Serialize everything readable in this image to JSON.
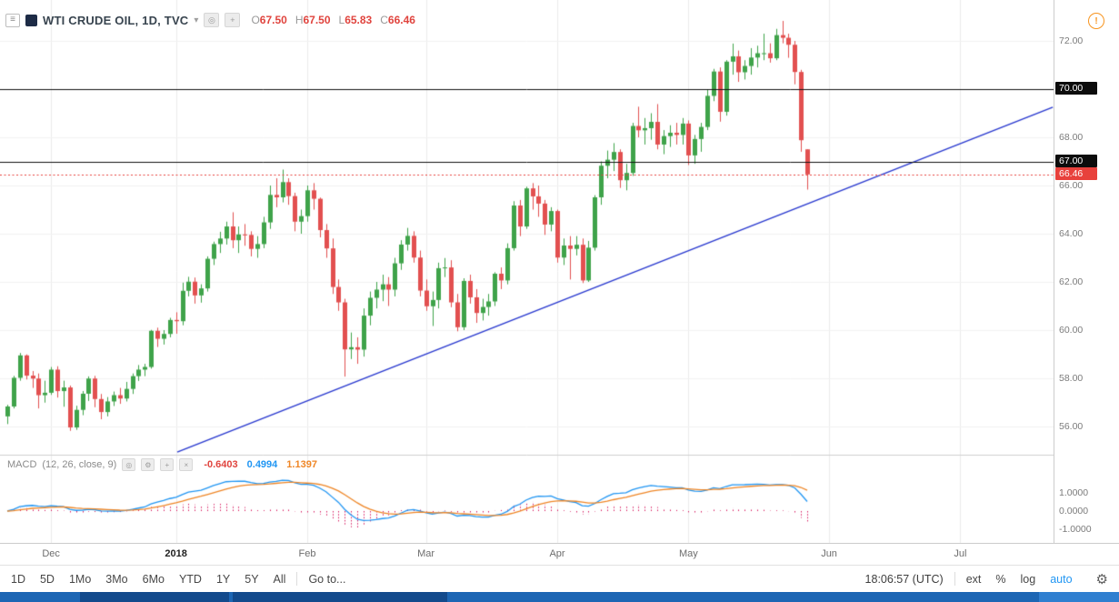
{
  "header": {
    "title": "WTI CRUDE OIL, 1D, TVC",
    "ohlc": {
      "o_label": "O",
      "o": "67.50",
      "h_label": "H",
      "h": "67.50",
      "l_label": "L",
      "l": "65.83",
      "c_label": "C",
      "c": "66.46"
    }
  },
  "macd_legend": {
    "title": "MACD",
    "params": "(12, 26, close, 9)",
    "hist": "-0.6403",
    "macd": "0.4994",
    "signal": "1.1397"
  },
  "toolbar": {
    "ranges": [
      "1D",
      "5D",
      "1Mo",
      "3Mo",
      "6Mo",
      "YTD",
      "1Y",
      "5Y",
      "All"
    ],
    "goto": "Go to...",
    "clock": "18:06:57 (UTC)",
    "ext": "ext",
    "percent": "%",
    "log": "log",
    "auto": "auto"
  },
  "colors": {
    "up": "#3fa34a",
    "down": "#e25050",
    "trendline": "#2838cf",
    "level": "#111111",
    "last_price": "#e8413c",
    "macd_line": "#2196f3",
    "signal_line": "#ef8626",
    "histogram": "#d81b60",
    "accent": "#2196f3",
    "alert": "#f7941e",
    "taskbar": "#1d66b4"
  },
  "chart_data": {
    "type": "candlestick",
    "title": "WTI CRUDE OIL, 1D, TVC",
    "symbol": "WTI CRUDE OIL",
    "interval": "1D",
    "exchange": "TVC",
    "price_ticks": [
      72,
      68,
      66,
      64,
      62,
      60,
      58,
      56
    ],
    "levels": [
      70.0,
      67.0
    ],
    "last_price": 66.46,
    "trendline": {
      "i1": 27.2,
      "p1": 54.94,
      "i2": 167.3,
      "p2": 69.25
    },
    "months": [
      {
        "label": "Dec",
        "i": 7
      },
      {
        "label": "2018",
        "i": 27,
        "bold": true
      },
      {
        "label": "Feb",
        "i": 48
      },
      {
        "label": "Mar",
        "i": 67
      },
      {
        "label": "Apr",
        "i": 88
      },
      {
        "label": "May",
        "i": 109
      },
      {
        "label": "Jun",
        "i": 131.5
      },
      {
        "label": "Jul",
        "i": 152.5
      }
    ],
    "indicator": {
      "name": "MACD",
      "params": "(12, 26, close, 9)",
      "fast": 12,
      "slow": 26,
      "source": "close",
      "signal_len": 9,
      "values": {
        "histogram": -0.6403,
        "macd": 0.4994,
        "signal": 1.1397
      },
      "ticks": [
        1,
        0,
        -1
      ]
    },
    "candles": [
      [
        56.42,
        56.9,
        56.1,
        56.83
      ],
      [
        56.83,
        58.1,
        56.75,
        58.02
      ],
      [
        58.02,
        59.05,
        57.9,
        58.95
      ],
      [
        58.95,
        58.99,
        57.95,
        58.11
      ],
      [
        58.11,
        58.3,
        57.6,
        57.99
      ],
      [
        57.99,
        58.2,
        56.75,
        57.3
      ],
      [
        57.3,
        57.9,
        56.99,
        57.4
      ],
      [
        57.4,
        58.47,
        57.31,
        58.36
      ],
      [
        58.36,
        58.5,
        57.2,
        57.47
      ],
      [
        57.47,
        57.9,
        56.82,
        57.62
      ],
      [
        57.62,
        57.7,
        55.82,
        55.96
      ],
      [
        55.96,
        56.86,
        55.86,
        56.69
      ],
      [
        56.69,
        57.47,
        56.47,
        57.36
      ],
      [
        57.36,
        58.08,
        57.06,
        57.99
      ],
      [
        57.99,
        58.1,
        56.8,
        57.14
      ],
      [
        57.14,
        57.35,
        56.3,
        56.6
      ],
      [
        56.6,
        57.22,
        56.42,
        57.04
      ],
      [
        57.04,
        57.45,
        56.85,
        57.3
      ],
      [
        57.3,
        57.6,
        56.94,
        57.16
      ],
      [
        57.16,
        57.85,
        57.04,
        57.56
      ],
      [
        57.56,
        58.2,
        57.35,
        58.09
      ],
      [
        58.09,
        58.55,
        57.89,
        58.36
      ],
      [
        58.36,
        58.6,
        58.09,
        58.47
      ],
      [
        58.47,
        60.01,
        58.4,
        59.97
      ],
      [
        59.97,
        60.1,
        59.3,
        59.64
      ],
      [
        59.64,
        60.0,
        59.4,
        59.84
      ],
      [
        59.84,
        60.51,
        59.7,
        60.42
      ],
      [
        60.42,
        60.74,
        59.85,
        60.37
      ],
      [
        60.37,
        61.97,
        60.2,
        61.63
      ],
      [
        61.63,
        62.21,
        61.4,
        62.01
      ],
      [
        62.01,
        62.18,
        61.1,
        61.44
      ],
      [
        61.44,
        61.9,
        61.14,
        61.73
      ],
      [
        61.73,
        63.06,
        61.6,
        62.96
      ],
      [
        62.96,
        63.67,
        62.7,
        63.57
      ],
      [
        63.57,
        64.08,
        63.2,
        63.8
      ],
      [
        63.8,
        64.5,
        63.55,
        64.3
      ],
      [
        64.3,
        64.89,
        63.4,
        63.73
      ],
      [
        63.73,
        64.3,
        63.2,
        63.97
      ],
      [
        63.97,
        64.4,
        63.5,
        63.95
      ],
      [
        63.95,
        64.1,
        63.06,
        63.37
      ],
      [
        63.37,
        63.9,
        63.0,
        63.57
      ],
      [
        63.57,
        64.7,
        63.4,
        64.47
      ],
      [
        64.47,
        66.0,
        64.2,
        65.61
      ],
      [
        65.61,
        66.3,
        65.1,
        65.51
      ],
      [
        65.51,
        66.66,
        65.3,
        66.14
      ],
      [
        66.14,
        66.3,
        65.2,
        65.56
      ],
      [
        65.56,
        65.7,
        64.1,
        64.5
      ],
      [
        64.5,
        65.0,
        64.0,
        64.73
      ],
      [
        64.73,
        66.0,
        64.5,
        65.8
      ],
      [
        65.8,
        66.1,
        65.0,
        65.45
      ],
      [
        65.45,
        65.5,
        63.85,
        64.15
      ],
      [
        64.15,
        64.4,
        63.0,
        63.39
      ],
      [
        63.39,
        63.8,
        61.5,
        61.79
      ],
      [
        61.79,
        62.1,
        60.8,
        61.15
      ],
      [
        61.15,
        61.3,
        58.07,
        59.2
      ],
      [
        59.2,
        59.9,
        58.8,
        59.29
      ],
      [
        59.29,
        59.7,
        58.6,
        59.19
      ],
      [
        59.19,
        60.9,
        58.9,
        60.6
      ],
      [
        60.6,
        61.6,
        60.2,
        61.34
      ],
      [
        61.34,
        62.0,
        60.9,
        61.68
      ],
      [
        61.68,
        62.3,
        61.2,
        61.9
      ],
      [
        61.9,
        62.2,
        61.0,
        61.68
      ],
      [
        61.68,
        63.0,
        61.4,
        62.77
      ],
      [
        62.77,
        63.73,
        62.5,
        63.55
      ],
      [
        63.55,
        64.24,
        63.3,
        63.91
      ],
      [
        63.91,
        64.1,
        62.8,
        63.01
      ],
      [
        63.01,
        63.3,
        61.4,
        61.64
      ],
      [
        61.64,
        62.1,
        60.8,
        60.99
      ],
      [
        60.99,
        61.6,
        60.17,
        61.25
      ],
      [
        61.25,
        62.8,
        60.9,
        62.57
      ],
      [
        62.57,
        62.99,
        62.2,
        62.6
      ],
      [
        62.6,
        62.9,
        60.95,
        61.15
      ],
      [
        61.15,
        61.5,
        59.95,
        60.12
      ],
      [
        60.12,
        62.15,
        60.0,
        62.04
      ],
      [
        62.04,
        62.3,
        61.1,
        61.36
      ],
      [
        61.36,
        61.7,
        60.3,
        60.71
      ],
      [
        60.71,
        61.3,
        60.4,
        60.96
      ],
      [
        60.96,
        61.5,
        60.6,
        61.19
      ],
      [
        61.19,
        62.4,
        61.0,
        62.34
      ],
      [
        62.34,
        62.6,
        61.7,
        62.06
      ],
      [
        62.06,
        63.6,
        61.9,
        63.4
      ],
      [
        63.4,
        65.35,
        63.3,
        65.17
      ],
      [
        65.17,
        65.4,
        63.9,
        64.3
      ],
      [
        64.3,
        65.95,
        64.2,
        65.88
      ],
      [
        65.88,
        66.1,
        65.0,
        65.55
      ],
      [
        65.55,
        66.0,
        64.7,
        65.25
      ],
      [
        65.25,
        65.4,
        63.95,
        64.38
      ],
      [
        64.38,
        65.1,
        64.1,
        64.94
      ],
      [
        64.94,
        65.0,
        62.8,
        63.01
      ],
      [
        63.01,
        63.8,
        62.7,
        63.51
      ],
      [
        63.51,
        63.9,
        62.1,
        63.37
      ],
      [
        63.37,
        63.9,
        63.1,
        63.54
      ],
      [
        63.54,
        63.8,
        61.95,
        62.06
      ],
      [
        62.06,
        63.7,
        62.0,
        63.42
      ],
      [
        63.42,
        65.6,
        63.3,
        65.51
      ],
      [
        65.51,
        67.0,
        65.2,
        66.82
      ],
      [
        66.82,
        67.45,
        66.3,
        67.07
      ],
      [
        67.07,
        67.76,
        66.6,
        67.39
      ],
      [
        67.39,
        67.5,
        65.9,
        66.22
      ],
      [
        66.22,
        66.9,
        65.8,
        66.52
      ],
      [
        66.52,
        68.6,
        66.4,
        68.47
      ],
      [
        68.47,
        69.27,
        68.0,
        68.29
      ],
      [
        68.29,
        68.8,
        67.7,
        68.38
      ],
      [
        68.38,
        69.0,
        67.9,
        68.64
      ],
      [
        68.64,
        69.38,
        67.5,
        67.7
      ],
      [
        67.7,
        68.3,
        67.3,
        68.05
      ],
      [
        68.05,
        68.5,
        67.6,
        68.19
      ],
      [
        68.19,
        68.6,
        67.7,
        68.1
      ],
      [
        68.1,
        68.8,
        67.7,
        68.57
      ],
      [
        68.57,
        68.7,
        66.85,
        67.25
      ],
      [
        67.25,
        68.1,
        66.9,
        67.93
      ],
      [
        67.93,
        68.6,
        67.4,
        68.43
      ],
      [
        68.43,
        69.97,
        68.3,
        69.72
      ],
      [
        69.72,
        70.84,
        69.5,
        70.73
      ],
      [
        70.73,
        70.9,
        68.65,
        69.06
      ],
      [
        69.06,
        71.2,
        68.9,
        71.14
      ],
      [
        71.14,
        71.89,
        70.6,
        71.36
      ],
      [
        71.36,
        71.6,
        70.3,
        70.7
      ],
      [
        70.7,
        71.2,
        70.4,
        70.96
      ],
      [
        70.96,
        71.7,
        70.6,
        71.31
      ],
      [
        71.31,
        71.8,
        70.9,
        71.49
      ],
      [
        71.49,
        72.3,
        71.2,
        71.49
      ],
      [
        71.49,
        71.9,
        71.1,
        71.28
      ],
      [
        71.28,
        72.5,
        71.2,
        72.24
      ],
      [
        72.24,
        72.83,
        71.9,
        72.13
      ],
      [
        72.13,
        72.3,
        71.3,
        71.84
      ],
      [
        71.84,
        72.0,
        70.2,
        70.71
      ],
      [
        70.71,
        70.8,
        67.4,
        67.88
      ],
      [
        67.5,
        67.5,
        65.83,
        66.46
      ]
    ]
  }
}
